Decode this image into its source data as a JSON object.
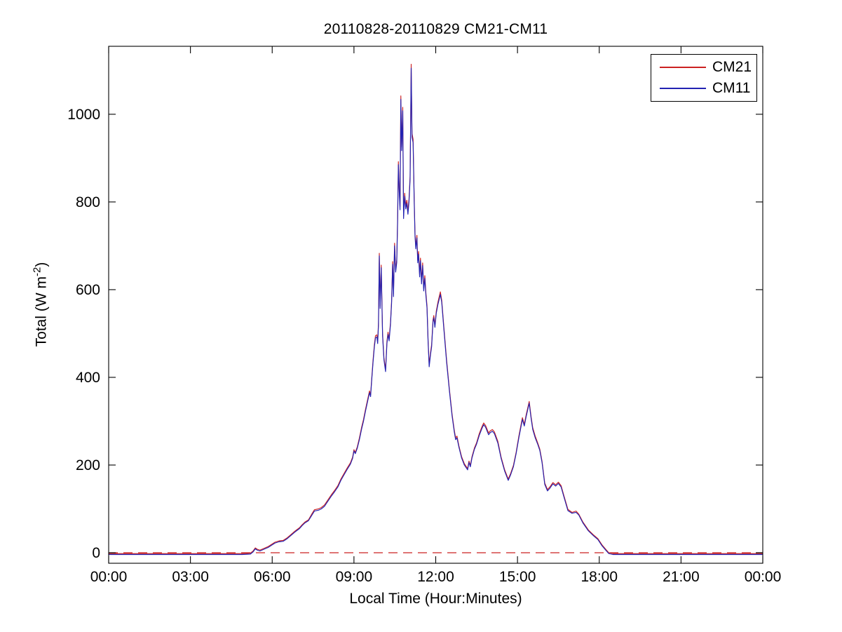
{
  "figure": {
    "title": "20110828-20110829 CM21-CM11"
  },
  "axes": {
    "xlabel": "Local Time (Hour:Minutes)",
    "ylabel_prefix": "Total (W m",
    "ylabel_sup": "-2",
    "ylabel_suffix": ")",
    "x_ticks": [
      "00:00",
      "03:00",
      "06:00",
      "09:00",
      "12:00",
      "15:00",
      "18:00",
      "21:00",
      "00:00"
    ],
    "y_ticks": [
      0,
      200,
      400,
      600,
      800,
      1000
    ]
  },
  "legend": {
    "position": "upper-right",
    "entries": [
      {
        "label": "CM21",
        "color": "#cc2222"
      },
      {
        "label": "CM11",
        "color": "#2222b2"
      }
    ]
  },
  "chart_data": {
    "type": "line",
    "title": "20110828-20110829 CM21-CM11",
    "xlabel": "Local Time (Hour:Minutes)",
    "ylabel": "Total (W m^-2)",
    "x_axis_unit": "hours (local time)",
    "xlim_hours": [
      0,
      24
    ],
    "ylim": [
      -24,
      1155
    ],
    "x_tick_hours": [
      0,
      3,
      6,
      9,
      12,
      15,
      18,
      21,
      24
    ],
    "x_tick_labels": [
      "00:00",
      "03:00",
      "06:00",
      "09:00",
      "12:00",
      "15:00",
      "18:00",
      "21:00",
      "00:00"
    ],
    "y_tick_values": [
      0,
      200,
      400,
      600,
      800,
      1000
    ],
    "grid": false,
    "legend_position": "upper right",
    "x_hours": [
      0,
      0.5,
      1,
      1.5,
      2,
      2.5,
      3,
      3.5,
      4,
      4.5,
      4.9,
      5.2,
      5.3,
      5.38,
      5.45,
      5.55,
      5.7,
      5.85,
      6.0,
      6.1,
      6.25,
      6.4,
      6.55,
      6.7,
      6.85,
      7.0,
      7.1,
      7.2,
      7.33,
      7.45,
      7.55,
      7.7,
      7.8,
      7.92,
      8.05,
      8.18,
      8.3,
      8.41,
      8.52,
      8.62,
      8.75,
      8.87,
      8.95,
      9.0,
      9.05,
      9.12,
      9.2,
      9.28,
      9.35,
      9.42,
      9.5,
      9.57,
      9.61,
      9.65,
      9.7,
      9.75,
      9.79,
      9.84,
      9.87,
      9.9,
      9.93,
      9.96,
      10.0,
      10.05,
      10.1,
      10.16,
      10.21,
      10.25,
      10.29,
      10.34,
      10.38,
      10.42,
      10.45,
      10.49,
      10.53,
      10.57,
      10.6,
      10.63,
      10.66,
      10.69,
      10.72,
      10.75,
      10.79,
      10.82,
      10.86,
      10.9,
      10.94,
      10.98,
      11.02,
      11.06,
      11.1,
      11.13,
      11.17,
      11.21,
      11.24,
      11.27,
      11.31,
      11.34,
      11.37,
      11.41,
      11.44,
      11.48,
      11.52,
      11.56,
      11.6,
      11.64,
      11.68,
      11.72,
      11.76,
      11.81,
      11.85,
      11.9,
      11.93,
      11.97,
      12.02,
      12.08,
      12.17,
      12.22,
      12.3,
      12.4,
      12.5,
      12.6,
      12.68,
      12.73,
      12.78,
      12.85,
      12.95,
      13.05,
      13.17,
      13.22,
      13.27,
      13.33,
      13.42,
      13.5,
      13.6,
      13.7,
      13.76,
      13.83,
      13.94,
      14.0,
      14.08,
      14.15,
      14.28,
      14.4,
      14.53,
      14.66,
      14.75,
      14.85,
      14.95,
      15.05,
      15.18,
      15.25,
      15.32,
      15.43,
      15.5,
      15.56,
      15.65,
      15.75,
      15.82,
      15.9,
      16.0,
      16.1,
      16.2,
      16.3,
      16.4,
      16.5,
      16.6,
      16.7,
      16.85,
      17.0,
      17.15,
      17.25,
      17.4,
      17.6,
      17.8,
      17.95,
      18.1,
      18.25,
      18.35,
      18.5,
      19,
      19.5,
      20,
      20.5,
      21,
      21.5,
      22,
      22.5,
      23,
      23.5,
      24
    ],
    "series": [
      {
        "name": "CM21",
        "color": "#cc2222",
        "style": "solid",
        "values": [
          -2,
          -2,
          -2,
          -2,
          -2,
          -2,
          -2,
          -2,
          -2,
          -2,
          -2,
          -1,
          4,
          11,
          8,
          6,
          10,
          14,
          20,
          24,
          27,
          28,
          34,
          42,
          50,
          57,
          64,
          70,
          75,
          88,
          98,
          100,
          103,
          109,
          121,
          133,
          143,
          153,
          168,
          179,
          193,
          205,
          218,
          235,
          229,
          241,
          262,
          286,
          304,
          326,
          349,
          369,
          360,
          396,
          439,
          475,
          495,
          497,
          482,
          525,
          683,
          562,
          656,
          500,
          445,
          418,
          482,
          503,
          488,
          525,
          573,
          664,
          590,
          706,
          646,
          668,
          757,
          892,
          833,
          789,
          1042,
          925,
          1016,
          769,
          820,
          791,
          804,
          779,
          807,
          859,
          1114,
          956,
          943,
          809,
          728,
          699,
          724,
          667,
          687,
          635,
          672,
          619,
          661,
          603,
          632,
          592,
          563,
          485,
          429,
          457,
          475,
          531,
          541,
          519,
          551,
          571,
          595,
          576,
          514,
          439,
          374,
          316,
          280,
          262,
          266,
          244,
          219,
          203,
          192,
          209,
          199,
          219,
          239,
          251,
          272,
          288,
          296,
          290,
          273,
          278,
          281,
          276,
          254,
          218,
          189,
          168,
          181,
          199,
          229,
          266,
          308,
          293,
          315,
          345,
          310,
          285,
          266,
          249,
          236,
          209,
          159,
          144,
          151,
          160,
          155,
          161,
          153,
          131,
          99,
          92,
          95,
          88,
          70,
          52,
          40,
          32,
          18,
          7,
          0,
          -2,
          -2,
          -2,
          -2,
          -2,
          -2,
          -2,
          -2,
          -2,
          -2,
          -2,
          -2
        ]
      },
      {
        "name": "CM11",
        "color": "#2222b2",
        "style": "solid",
        "values": [
          -4,
          -4,
          -4,
          -4,
          -4,
          -4,
          -4,
          -4,
          -4,
          -4,
          -4,
          -3,
          2,
          9,
          6,
          4,
          8,
          12,
          18,
          22,
          25,
          26,
          32,
          40,
          48,
          55,
          62,
          68,
          73,
          85,
          95,
          97,
          100,
          106,
          118,
          130,
          140,
          150,
          165,
          176,
          190,
          202,
          215,
          232,
          226,
          238,
          258,
          282,
          300,
          322,
          345,
          365,
          356,
          392,
          434,
          470,
          490,
          492,
          477,
          520,
          677,
          557,
          650,
          495,
          440,
          413,
          477,
          498,
          483,
          520,
          568,
          658,
          584,
          700,
          640,
          662,
          750,
          885,
          826,
          782,
          1034,
          917,
          1008,
          762,
          813,
          784,
          797,
          772,
          800,
          852,
          1105,
          948,
          935,
          802,
          722,
          693,
          718,
          661,
          681,
          629,
          666,
          613,
          655,
          597,
          626,
          586,
          558,
          480,
          424,
          452,
          470,
          526,
          536,
          514,
          546,
          566,
          589,
          571,
          509,
          434,
          370,
          312,
          276,
          258,
          262,
          241,
          216,
          200,
          189,
          206,
          196,
          216,
          236,
          248,
          268,
          284,
          292,
          286,
          269,
          274,
          277,
          272,
          250,
          215,
          186,
          165,
          178,
          196,
          226,
          262,
          304,
          289,
          311,
          341,
          306,
          281,
          262,
          246,
          233,
          206,
          156,
          141,
          148,
          157,
          152,
          158,
          150,
          128,
          96,
          90,
          92,
          86,
          68,
          50,
          38,
          30,
          16,
          5,
          -2,
          -4,
          -4,
          -4,
          -4,
          -4,
          -4,
          -4,
          -4,
          -4,
          -4,
          -4,
          -4
        ]
      }
    ],
    "reference_line": {
      "name": "zero reference (CM21-CM11 difference)",
      "y": 0,
      "color": "#cc2222",
      "style": "dashed"
    }
  }
}
